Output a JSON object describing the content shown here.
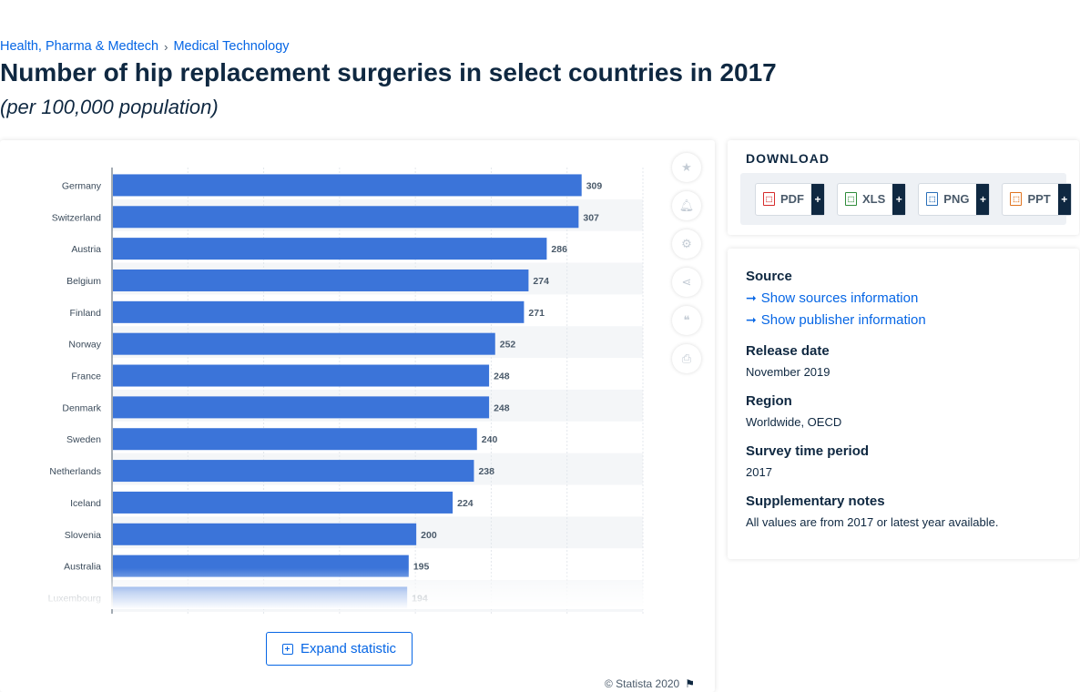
{
  "breadcrumb": {
    "item1": "Health, Pharma & Medtech",
    "separator": "›",
    "item2": "Medical Technology"
  },
  "title": "Number of hip replacement surgeries in select countries in 2017",
  "subtitle": "(per 100,000 population)",
  "chart_data": {
    "type": "bar",
    "orientation": "horizontal",
    "categories": [
      "Germany",
      "Switzerland",
      "Austria",
      "Belgium",
      "Finland",
      "Norway",
      "France",
      "Denmark",
      "Sweden",
      "Netherlands",
      "Iceland",
      "Slovenia",
      "Australia",
      "Luxembourg"
    ],
    "values": [
      309,
      307,
      286,
      274,
      271,
      252,
      248,
      248,
      240,
      238,
      224,
      200,
      195,
      194
    ],
    "xlim": [
      0,
      350
    ],
    "grid": true,
    "bar_color": "#3b74d9",
    "row_stripe_color": "#f4f6f8"
  },
  "expand_button": {
    "label": "Expand statistic"
  },
  "copyright": "© Statista 2020",
  "tools": [
    "star-icon",
    "bell-icon",
    "gear-icon",
    "share-icon",
    "quote-icon",
    "print-icon"
  ],
  "download": {
    "title": "DOWNLOAD",
    "buttons": [
      {
        "label": "PDF",
        "icon": "pdf-icon",
        "color": "#d62a2a"
      },
      {
        "label": "XLS",
        "icon": "xls-icon",
        "color": "#2e8b3a"
      },
      {
        "label": "PNG",
        "icon": "png-icon",
        "color": "#2a6fb8"
      },
      {
        "label": "PPT",
        "icon": "ppt-icon",
        "color": "#e0731f"
      }
    ],
    "plus": "+"
  },
  "info": {
    "source_heading": "Source",
    "show_sources": "Show sources information",
    "show_publisher": "Show publisher information",
    "release_heading": "Release date",
    "release_value": "November 2019",
    "region_heading": "Region",
    "region_value": "Worldwide, OECD",
    "survey_heading": "Survey time period",
    "survey_value": "2017",
    "notes_heading": "Supplementary notes",
    "notes_value": "All values are from 2017 or latest year available."
  }
}
